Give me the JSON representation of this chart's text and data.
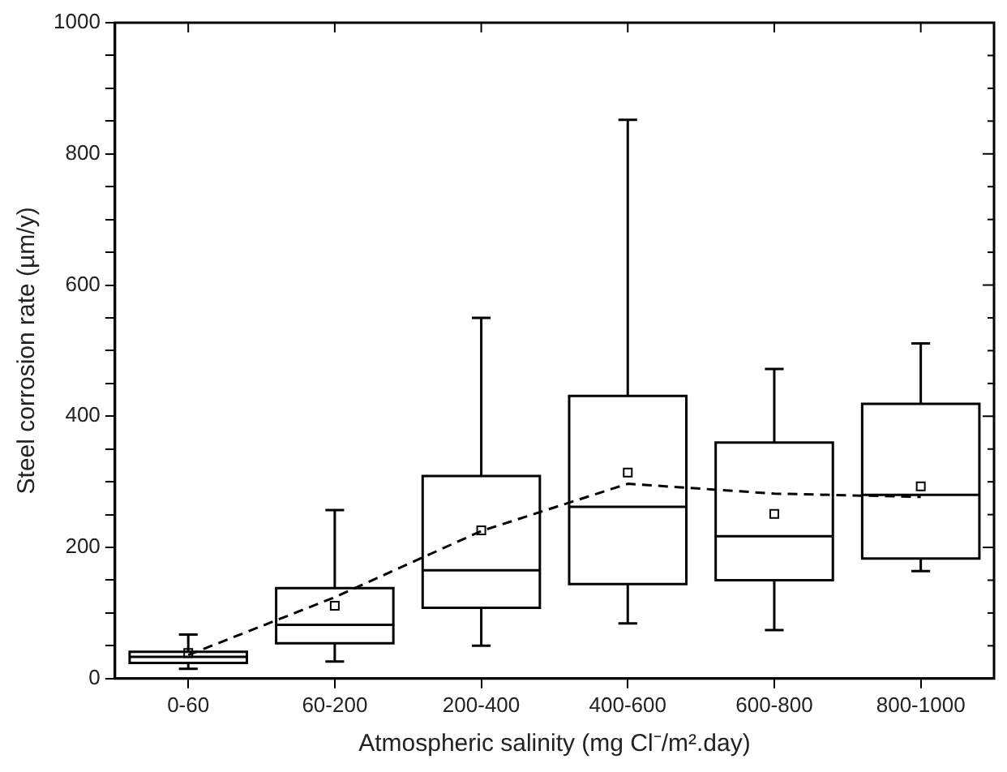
{
  "chart_data": {
    "type": "box",
    "xlabel": "Atmospheric salinity (mg Cl⁻/m².day)",
    "ylabel": "Steel corrosion rate (µm/y)",
    "categories": [
      "0-60",
      "60-200",
      "200-400",
      "400-600",
      "600-800",
      "800-1000"
    ],
    "color": "#000000",
    "boxes": [
      {
        "low": 15,
        "q1": 24,
        "median": 33,
        "q3": 41,
        "high": 67,
        "mean": 39
      },
      {
        "low": 26,
        "q1": 54,
        "median": 82,
        "q3": 138,
        "high": 257,
        "mean": 111
      },
      {
        "low": 50,
        "q1": 108,
        "median": 165,
        "q3": 309,
        "high": 550,
        "mean": 226
      },
      {
        "low": 84,
        "q1": 144,
        "median": 262,
        "q3": 431,
        "high": 852,
        "mean": 314
      },
      {
        "low": 74,
        "q1": 150,
        "median": 217,
        "q3": 360,
        "high": 472,
        "mean": 251
      },
      {
        "low": 164,
        "q1": 183,
        "median": 280,
        "q3": 419,
        "high": 511,
        "mean": 293
      }
    ],
    "series": [
      {
        "type": "line",
        "color": "#000000",
        "values": [
          36,
          124,
          225,
          297,
          282,
          277
        ],
        "line_style": "dashed",
        "marker": "none"
      }
    ],
    "ylim": [
      0,
      1000
    ],
    "yticks": [
      0,
      {
        "value": 50,
        "label": null
      },
      {
        "value": 100,
        "label": null
      },
      {
        "value": 150,
        "label": null
      },
      200,
      {
        "value": 250,
        "label": null
      },
      {
        "value": 300,
        "label": null
      },
      {
        "value": 350,
        "label": null
      },
      400,
      {
        "value": 450,
        "label": null
      },
      {
        "value": 500,
        "label": null
      },
      {
        "value": 550,
        "label": null
      },
      600,
      {
        "value": 650,
        "label": null
      },
      {
        "value": 700,
        "label": null
      },
      {
        "value": 750,
        "label": null
      },
      800,
      {
        "value": 850,
        "label": null
      },
      {
        "value": 900,
        "label": null
      },
      {
        "value": 950,
        "label": null
      },
      1000
    ],
    "grid": false
  }
}
